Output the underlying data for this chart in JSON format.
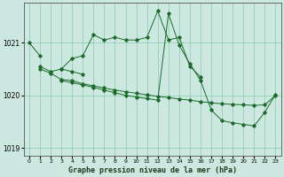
{
  "title": "Graphe pression niveau de la mer (hPa)",
  "bg_color": "#cde8e0",
  "grid_color": "#88ccaa",
  "line_color": "#1a6b2a",
  "ylim": [
    1018.85,
    1021.75
  ],
  "yticks": [
    1019,
    1020,
    1021
  ],
  "xlim": [
    -0.5,
    23.5
  ],
  "xticks": [
    0,
    1,
    2,
    3,
    4,
    5,
    6,
    7,
    8,
    9,
    10,
    11,
    12,
    13,
    14,
    15,
    16,
    17,
    18,
    19,
    20,
    21,
    22,
    23
  ],
  "series": [
    [
      1021.0,
      1020.75,
      null,
      null,
      null,
      null,
      null,
      null,
      null,
      null,
      null,
      null,
      null,
      null,
      null,
      null,
      null,
      null,
      null,
      null,
      null,
      null,
      null,
      null
    ],
    [
      null,
      1020.55,
      1020.45,
      1020.5,
      1020.7,
      1020.75,
      1021.15,
      1021.05,
      1021.1,
      1021.05,
      1021.05,
      1021.1,
      1021.6,
      1021.05,
      1021.1,
      1020.55,
      1020.35,
      null,
      null,
      null,
      null,
      null,
      null,
      null
    ],
    [
      null,
      null,
      null,
      1020.5,
      1020.45,
      1020.4,
      null,
      null,
      null,
      null,
      null,
      null,
      null,
      null,
      null,
      null,
      null,
      null,
      null,
      null,
      null,
      null,
      null,
      null
    ],
    [
      null,
      1020.5,
      1020.42,
      1020.3,
      1020.28,
      1020.22,
      1020.18,
      1020.14,
      1020.1,
      1020.07,
      1020.04,
      1020.01,
      1019.98,
      1019.96,
      1019.93,
      1019.91,
      1019.88,
      1019.86,
      1019.84,
      1019.83,
      1019.82,
      1019.81,
      1019.82,
      1020.0
    ],
    [
      null,
      null,
      null,
      1020.28,
      1020.24,
      1020.2,
      1020.15,
      1020.1,
      1020.05,
      1020.0,
      1019.97,
      1019.94,
      1019.91,
      1021.55,
      1020.95,
      1020.6,
      1020.28,
      1019.72,
      1019.52,
      1019.48,
      1019.45,
      1019.42,
      1019.68,
      1020.02
    ]
  ]
}
